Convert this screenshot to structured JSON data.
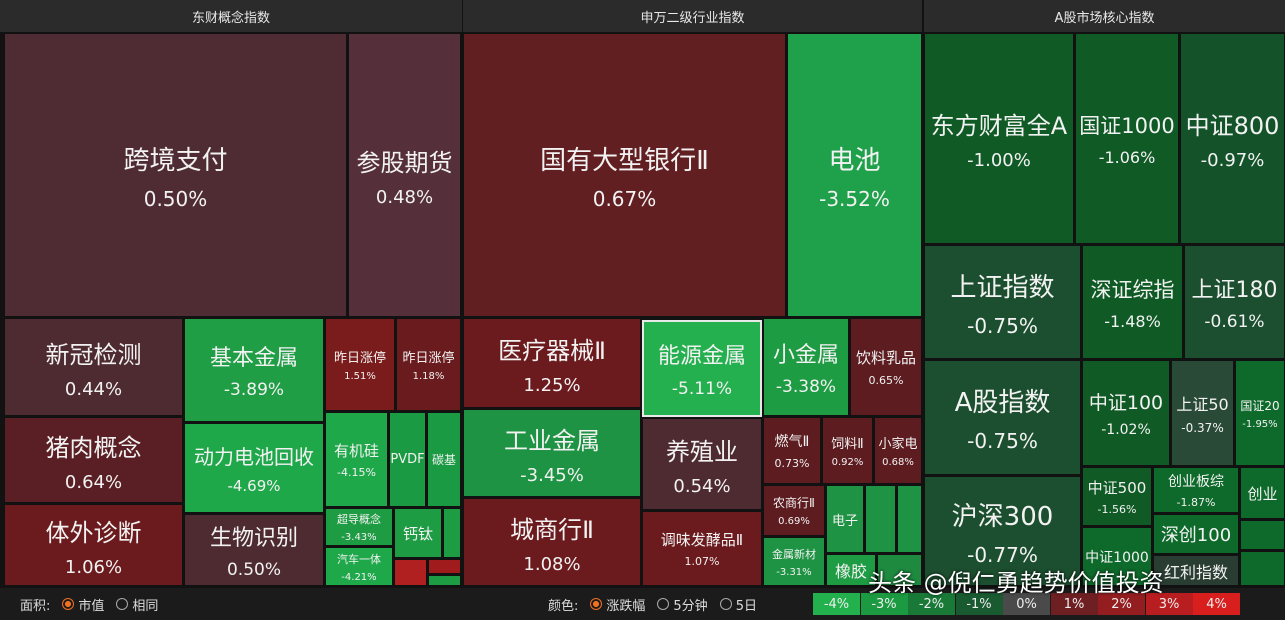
{
  "panels": [
    {
      "title": "东财概念指数",
      "tiles": [
        {
          "name": "跨境支付",
          "change": "0.50%"
        },
        {
          "name": "参股期货",
          "change": "0.48%"
        },
        {
          "name": "新冠检测",
          "change": "0.44%"
        },
        {
          "name": "猪肉概念",
          "change": "0.64%"
        },
        {
          "name": "体外诊断",
          "change": "1.06%"
        },
        {
          "name": "基本金属",
          "change": "-3.89%"
        },
        {
          "name": "动力电池回收",
          "change": "-4.69%"
        },
        {
          "name": "生物识别",
          "change": "0.50%"
        },
        {
          "name": "昨日涨停",
          "change": "1.51%"
        },
        {
          "name": "昨日涨停",
          "change": "1.18%"
        },
        {
          "name": "有机硅",
          "change": "-4.15%"
        },
        {
          "name": "PVDF"
        },
        {
          "name": "碳基"
        },
        {
          "name": "超导概念",
          "change": "-3.43%"
        },
        {
          "name": "汽车一体",
          "change": "-4.21%"
        },
        {
          "name": "钙钛"
        }
      ]
    },
    {
      "title": "申万二级行业指数",
      "tiles": [
        {
          "name": "国有大型银行Ⅱ",
          "change": "0.67%"
        },
        {
          "name": "电池",
          "change": "-3.52%"
        },
        {
          "name": "医疗器械Ⅱ",
          "change": "1.25%"
        },
        {
          "name": "工业金属",
          "change": "-3.45%"
        },
        {
          "name": "城商行Ⅱ",
          "change": "1.08%"
        },
        {
          "name": "能源金属",
          "change": "-5.11%"
        },
        {
          "name": "小金属",
          "change": "-3.38%"
        },
        {
          "name": "饮料乳品",
          "change": "0.65%"
        },
        {
          "name": "养殖业",
          "change": "0.54%"
        },
        {
          "name": "调味发酵品Ⅱ",
          "change": "1.07%"
        },
        {
          "name": "燃气Ⅱ",
          "change": "0.73%"
        },
        {
          "name": "饲料Ⅱ",
          "change": "0.92%"
        },
        {
          "name": "小家电",
          "change": "0.68%"
        },
        {
          "name": "农商行Ⅱ",
          "change": "0.69%"
        },
        {
          "name": "金属新材",
          "change": "-3.31%"
        },
        {
          "name": "电子"
        },
        {
          "name": "橡胶"
        }
      ]
    },
    {
      "title": "A股市场核心指数",
      "tiles": [
        {
          "name": "东方财富全A",
          "change": "-1.00%"
        },
        {
          "name": "国证1000",
          "change": "-1.06%"
        },
        {
          "name": "中证800",
          "change": "-0.97%"
        },
        {
          "name": "上证指数",
          "change": "-0.75%"
        },
        {
          "name": "深证综指",
          "change": "-1.48%"
        },
        {
          "name": "上证180",
          "change": "-0.61%"
        },
        {
          "name": "A股指数",
          "change": "-0.75%"
        },
        {
          "name": "中证100",
          "change": "-1.02%"
        },
        {
          "name": "上证50",
          "change": "-0.37%"
        },
        {
          "name": "国证20",
          "change": "-1.95%"
        },
        {
          "name": "沪深300",
          "change": "-0.77%"
        },
        {
          "name": "中证500",
          "change": "-1.56%"
        },
        {
          "name": "创业板综",
          "change": "-1.87%"
        },
        {
          "name": "创业"
        },
        {
          "name": "中证1000"
        },
        {
          "name": "深创100"
        },
        {
          "name": "红利指数"
        }
      ]
    }
  ],
  "controls": {
    "area_label": "面积:",
    "area_options": [
      "市值",
      "相同"
    ],
    "color_label": "颜色:",
    "color_options": [
      "涨跌幅",
      "5分钟",
      "5日"
    ]
  },
  "legend": [
    "-4%",
    "-3%",
    "-2%",
    "-1%",
    "0%",
    "1%",
    "2%",
    "3%",
    "4%"
  ],
  "watermark": "头条 @倪仁勇趋势价值投资"
}
